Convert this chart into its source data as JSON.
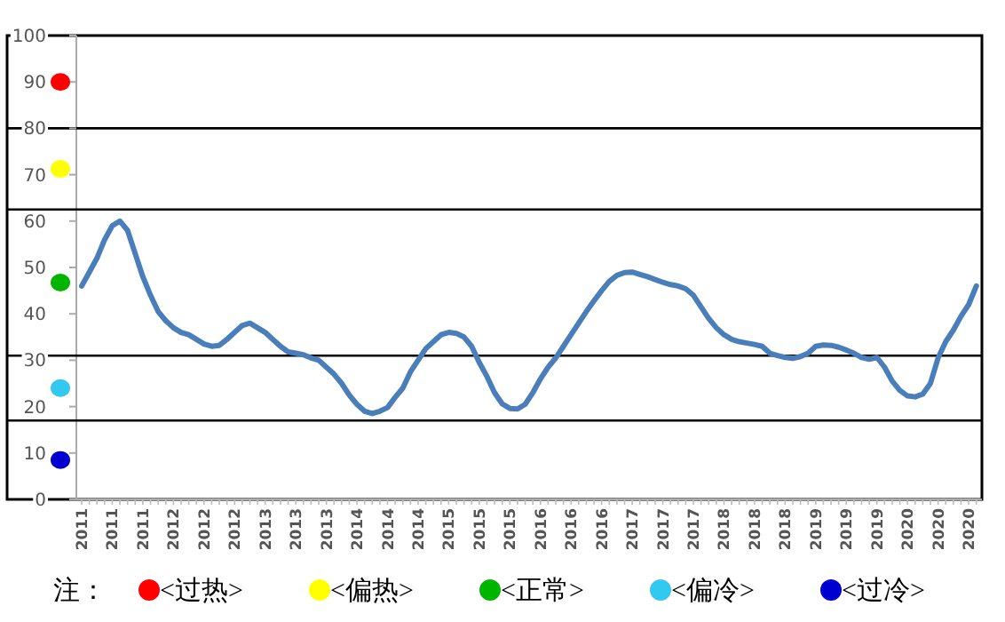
{
  "chart_data": {
    "type": "line",
    "categories": [
      "2011",
      null,
      null,
      null,
      "2011",
      null,
      null,
      null,
      "2011",
      null,
      null,
      null,
      "2012",
      null,
      null,
      null,
      "2012",
      null,
      null,
      null,
      "2012",
      null,
      null,
      null,
      "2013",
      null,
      null,
      null,
      "2013",
      null,
      null,
      null,
      "2013",
      null,
      null,
      null,
      "2014",
      null,
      null,
      null,
      "2014",
      null,
      null,
      null,
      "2014",
      null,
      null,
      null,
      "2015",
      null,
      null,
      null,
      "2015",
      null,
      null,
      null,
      "2015",
      null,
      null,
      null,
      "2016",
      null,
      null,
      null,
      "2016",
      null,
      null,
      null,
      "2016",
      null,
      null,
      null,
      "2017",
      null,
      null,
      null,
      "2017",
      null,
      null,
      null,
      "2017",
      null,
      null,
      null,
      "2018",
      null,
      null,
      null,
      "2018",
      null,
      null,
      null,
      "2018",
      null,
      null,
      null,
      "2019",
      null,
      null,
      null,
      "2019",
      null,
      null,
      null,
      "2019",
      null,
      null,
      null,
      "2020",
      null,
      null,
      null,
      "2020",
      null,
      null,
      null,
      "2020",
      null
    ],
    "series": [
      {
        "color": "#4a7ebb",
        "values": [
          46,
          49,
          52,
          56,
          59,
          60,
          58,
          53,
          48,
          44,
          40.5,
          38.5,
          37,
          36,
          35.5,
          34.5,
          33.5,
          33,
          33.2,
          34.5,
          36,
          37.5,
          38,
          37,
          36,
          34.5,
          33,
          31.8,
          31.5,
          31.2,
          30.5,
          30,
          28.5,
          27,
          25,
          22.5,
          20.5,
          19,
          18.5,
          19,
          19.8,
          22,
          24,
          27.5,
          30,
          32.5,
          34,
          35.5,
          36,
          35.8,
          35,
          33,
          29.5,
          26.5,
          23,
          20.6,
          19.6,
          19.5,
          20.5,
          23,
          26,
          28.5,
          30.5,
          33,
          35.5,
          38,
          40.5,
          42.8,
          45,
          47,
          48.3,
          48.9,
          49,
          48.5,
          48,
          47.4,
          46.8,
          46.3,
          46,
          45.4,
          44,
          41.5,
          39,
          37,
          35.5,
          34.5,
          34,
          33.7,
          33.4,
          33,
          31.5,
          31,
          30.6,
          30.4,
          30.8,
          31.5,
          33,
          33.3,
          33.2,
          32.8,
          32.2,
          31.5,
          30.6,
          30.2,
          30.6,
          28.5,
          25.5,
          23.5,
          22.3,
          22.1,
          22.7,
          25,
          30.5,
          34,
          36.5,
          39.5,
          42,
          46
        ]
      }
    ],
    "ylim": [
      0,
      100
    ],
    "yticks": [
      0,
      10,
      20,
      30,
      40,
      50,
      60,
      70,
      80,
      90,
      100
    ],
    "ref_lines": [
      {
        "axis": "y",
        "value": 80
      },
      {
        "axis": "y",
        "value": 62.5
      },
      {
        "axis": "y",
        "value": 31
      },
      {
        "axis": "y",
        "value": 17
      }
    ],
    "annotations": [
      "注：",
      "<过热>",
      "<偏热>",
      "<正常>",
      "<偏冷>",
      "<过冷>"
    ]
  }
}
